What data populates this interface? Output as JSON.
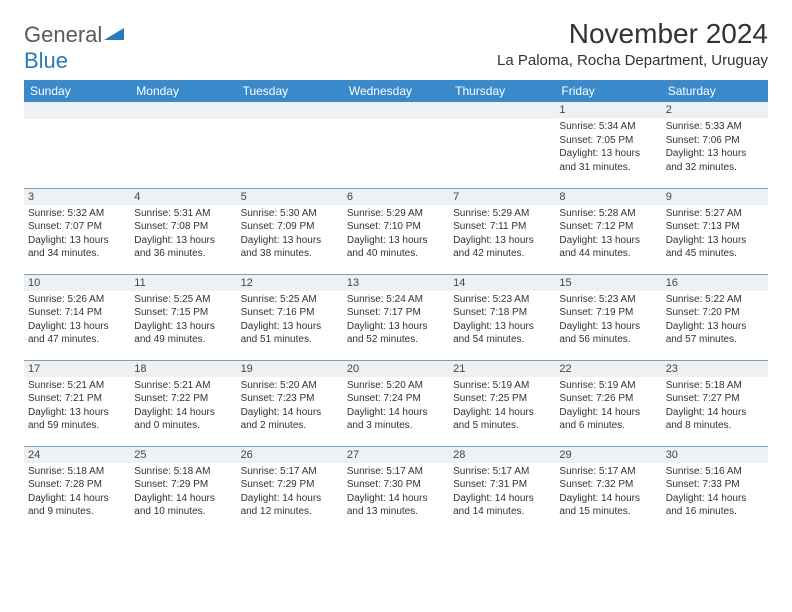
{
  "logo": {
    "text1": "General",
    "text2": "Blue"
  },
  "title": "November 2024",
  "location": "La Paloma, Rocha Department, Uruguay",
  "weekday_header_bg": "#3a8acb",
  "weekday_header_fg": "#ffffff",
  "daybar_bg": "#eef1f4",
  "cell_border": "#7a9fc0",
  "weekdays": [
    "Sunday",
    "Monday",
    "Tuesday",
    "Wednesday",
    "Thursday",
    "Friday",
    "Saturday"
  ],
  "weeks": [
    [
      null,
      null,
      null,
      null,
      null,
      {
        "n": "1",
        "sr": "Sunrise: 5:34 AM",
        "ss": "Sunset: 7:05 PM",
        "d1": "Daylight: 13 hours",
        "d2": "and 31 minutes."
      },
      {
        "n": "2",
        "sr": "Sunrise: 5:33 AM",
        "ss": "Sunset: 7:06 PM",
        "d1": "Daylight: 13 hours",
        "d2": "and 32 minutes."
      }
    ],
    [
      {
        "n": "3",
        "sr": "Sunrise: 5:32 AM",
        "ss": "Sunset: 7:07 PM",
        "d1": "Daylight: 13 hours",
        "d2": "and 34 minutes."
      },
      {
        "n": "4",
        "sr": "Sunrise: 5:31 AM",
        "ss": "Sunset: 7:08 PM",
        "d1": "Daylight: 13 hours",
        "d2": "and 36 minutes."
      },
      {
        "n": "5",
        "sr": "Sunrise: 5:30 AM",
        "ss": "Sunset: 7:09 PM",
        "d1": "Daylight: 13 hours",
        "d2": "and 38 minutes."
      },
      {
        "n": "6",
        "sr": "Sunrise: 5:29 AM",
        "ss": "Sunset: 7:10 PM",
        "d1": "Daylight: 13 hours",
        "d2": "and 40 minutes."
      },
      {
        "n": "7",
        "sr": "Sunrise: 5:29 AM",
        "ss": "Sunset: 7:11 PM",
        "d1": "Daylight: 13 hours",
        "d2": "and 42 minutes."
      },
      {
        "n": "8",
        "sr": "Sunrise: 5:28 AM",
        "ss": "Sunset: 7:12 PM",
        "d1": "Daylight: 13 hours",
        "d2": "and 44 minutes."
      },
      {
        "n": "9",
        "sr": "Sunrise: 5:27 AM",
        "ss": "Sunset: 7:13 PM",
        "d1": "Daylight: 13 hours",
        "d2": "and 45 minutes."
      }
    ],
    [
      {
        "n": "10",
        "sr": "Sunrise: 5:26 AM",
        "ss": "Sunset: 7:14 PM",
        "d1": "Daylight: 13 hours",
        "d2": "and 47 minutes."
      },
      {
        "n": "11",
        "sr": "Sunrise: 5:25 AM",
        "ss": "Sunset: 7:15 PM",
        "d1": "Daylight: 13 hours",
        "d2": "and 49 minutes."
      },
      {
        "n": "12",
        "sr": "Sunrise: 5:25 AM",
        "ss": "Sunset: 7:16 PM",
        "d1": "Daylight: 13 hours",
        "d2": "and 51 minutes."
      },
      {
        "n": "13",
        "sr": "Sunrise: 5:24 AM",
        "ss": "Sunset: 7:17 PM",
        "d1": "Daylight: 13 hours",
        "d2": "and 52 minutes."
      },
      {
        "n": "14",
        "sr": "Sunrise: 5:23 AM",
        "ss": "Sunset: 7:18 PM",
        "d1": "Daylight: 13 hours",
        "d2": "and 54 minutes."
      },
      {
        "n": "15",
        "sr": "Sunrise: 5:23 AM",
        "ss": "Sunset: 7:19 PM",
        "d1": "Daylight: 13 hours",
        "d2": "and 56 minutes."
      },
      {
        "n": "16",
        "sr": "Sunrise: 5:22 AM",
        "ss": "Sunset: 7:20 PM",
        "d1": "Daylight: 13 hours",
        "d2": "and 57 minutes."
      }
    ],
    [
      {
        "n": "17",
        "sr": "Sunrise: 5:21 AM",
        "ss": "Sunset: 7:21 PM",
        "d1": "Daylight: 13 hours",
        "d2": "and 59 minutes."
      },
      {
        "n": "18",
        "sr": "Sunrise: 5:21 AM",
        "ss": "Sunset: 7:22 PM",
        "d1": "Daylight: 14 hours",
        "d2": "and 0 minutes."
      },
      {
        "n": "19",
        "sr": "Sunrise: 5:20 AM",
        "ss": "Sunset: 7:23 PM",
        "d1": "Daylight: 14 hours",
        "d2": "and 2 minutes."
      },
      {
        "n": "20",
        "sr": "Sunrise: 5:20 AM",
        "ss": "Sunset: 7:24 PM",
        "d1": "Daylight: 14 hours",
        "d2": "and 3 minutes."
      },
      {
        "n": "21",
        "sr": "Sunrise: 5:19 AM",
        "ss": "Sunset: 7:25 PM",
        "d1": "Daylight: 14 hours",
        "d2": "and 5 minutes."
      },
      {
        "n": "22",
        "sr": "Sunrise: 5:19 AM",
        "ss": "Sunset: 7:26 PM",
        "d1": "Daylight: 14 hours",
        "d2": "and 6 minutes."
      },
      {
        "n": "23",
        "sr": "Sunrise: 5:18 AM",
        "ss": "Sunset: 7:27 PM",
        "d1": "Daylight: 14 hours",
        "d2": "and 8 minutes."
      }
    ],
    [
      {
        "n": "24",
        "sr": "Sunrise: 5:18 AM",
        "ss": "Sunset: 7:28 PM",
        "d1": "Daylight: 14 hours",
        "d2": "and 9 minutes."
      },
      {
        "n": "25",
        "sr": "Sunrise: 5:18 AM",
        "ss": "Sunset: 7:29 PM",
        "d1": "Daylight: 14 hours",
        "d2": "and 10 minutes."
      },
      {
        "n": "26",
        "sr": "Sunrise: 5:17 AM",
        "ss": "Sunset: 7:29 PM",
        "d1": "Daylight: 14 hours",
        "d2": "and 12 minutes."
      },
      {
        "n": "27",
        "sr": "Sunrise: 5:17 AM",
        "ss": "Sunset: 7:30 PM",
        "d1": "Daylight: 14 hours",
        "d2": "and 13 minutes."
      },
      {
        "n": "28",
        "sr": "Sunrise: 5:17 AM",
        "ss": "Sunset: 7:31 PM",
        "d1": "Daylight: 14 hours",
        "d2": "and 14 minutes."
      },
      {
        "n": "29",
        "sr": "Sunrise: 5:17 AM",
        "ss": "Sunset: 7:32 PM",
        "d1": "Daylight: 14 hours",
        "d2": "and 15 minutes."
      },
      {
        "n": "30",
        "sr": "Sunrise: 5:16 AM",
        "ss": "Sunset: 7:33 PM",
        "d1": "Daylight: 14 hours",
        "d2": "and 16 minutes."
      }
    ]
  ]
}
